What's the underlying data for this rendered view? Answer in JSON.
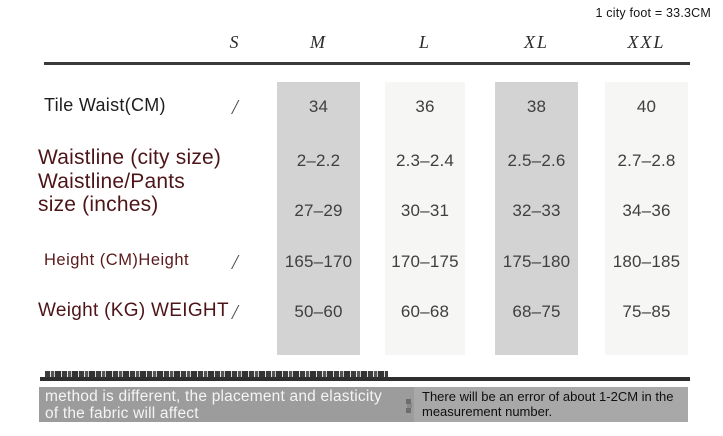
{
  "header": {
    "unit_note": "1 city foot = 33.3CM",
    "size_headers": [
      "S",
      "M",
      "L",
      "XL",
      "XXL"
    ]
  },
  "table": {
    "rows": [
      {
        "label": "Tile Waist(CM)",
        "values": [
          "/",
          "34",
          "36",
          "38",
          "40"
        ]
      },
      {
        "label": "Waistline (city size)\nWaistline/Pants\nsize (inches)",
        "values_top": [
          "",
          "2–2.2",
          "2.3–2.4",
          "2.5–2.6",
          "2.7–2.8"
        ],
        "values_bottom": [
          "",
          "27–29",
          "30–31",
          "32–33",
          "34–36"
        ]
      },
      {
        "label": "Height (CM)Height",
        "values": [
          "/",
          "165–170",
          "170–175",
          "175–180",
          "180–185"
        ]
      },
      {
        "label": "Weight (KG) WEIGHT",
        "values": [
          "/",
          "50–60",
          "60–68",
          "68–75",
          "75–85"
        ]
      }
    ]
  },
  "footer": {
    "left_note": "method is different, the placement and elasticity of the fabric will affect",
    "right_note": "There will be an error of about 1-2CM in the measurement number."
  },
  "colors": {
    "band_dark": "#d3d3d3",
    "band_light": "#f6f6f5",
    "rule_dark": "#3a3a3a",
    "bottom_divider": "#2e2e2e",
    "note_bar_bg": "#9c9c9c",
    "note_box_bg": "#a8a8a8",
    "label_maroon": "#4e1518"
  },
  "chart_data": {
    "type": "table",
    "title": "Garment size chart",
    "unit_annotation": "1 city foot = 33.3CM",
    "columns": [
      "",
      "S",
      "M",
      "L",
      "XL",
      "XXL"
    ],
    "rows": [
      [
        "Tile Waist(CM)",
        "/",
        "34",
        "36",
        "38",
        "40"
      ],
      [
        "Waistline (city size) Waistline/Pants size (inches) — city size",
        "",
        "2–2.2",
        "2.3–2.4",
        "2.5–2.6",
        "2.7–2.8"
      ],
      [
        "Waistline (city size) Waistline/Pants size (inches) — inches",
        "",
        "27–29",
        "30–31",
        "32–33",
        "34–36"
      ],
      [
        "Height (CM)Height",
        "/",
        "165–170",
        "170–175",
        "175–180",
        "180–185"
      ],
      [
        "Weight (KG) WEIGHT",
        "/",
        "50–60",
        "60–68",
        "68–75",
        "75–85"
      ]
    ],
    "notes": [
      "method is different, the placement and elasticity of the fabric will affect",
      "There will be an error of about 1-2CM in the measurement number."
    ],
    "layout_hints": {
      "highlighted_columns": [
        "M",
        "XL"
      ],
      "lightly_shaded_columns": [
        "L",
        "XXL"
      ]
    }
  }
}
